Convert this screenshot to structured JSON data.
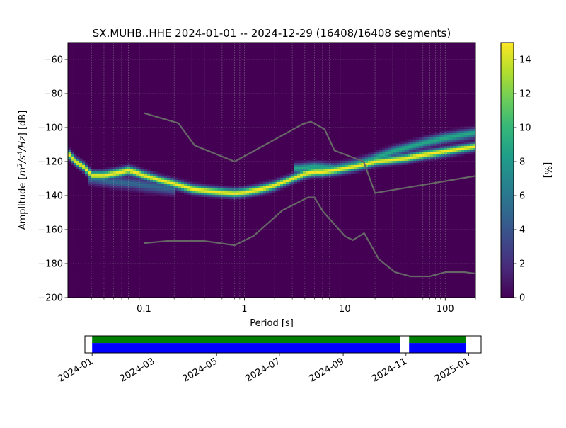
{
  "chart_data": [
    {
      "type": "heatmap",
      "title": "SX.MUHB..HHE   2024-01-01 -- 2024-12-29  (16408/16408 segments)",
      "xlabel": "Period [s]",
      "ylabel_main": "Amplitude [",
      "ylabel_suffix": "] [dB]",
      "ylabel_units_text": "m2/s4/Hz",
      "x_scale": "log",
      "xlim": [
        0.0175,
        200
      ],
      "ylim": [
        -200,
        -50
      ],
      "x_ticks": [
        {
          "value": 0.1,
          "label": "0.1"
        },
        {
          "value": 1,
          "label": "1"
        },
        {
          "value": 10,
          "label": "10"
        },
        {
          "value": 100,
          "label": "100"
        }
      ],
      "y_ticks": [
        {
          "value": -60,
          "label": "−60"
        },
        {
          "value": -80,
          "label": "−80"
        },
        {
          "value": -100,
          "label": "−100"
        },
        {
          "value": -120,
          "label": "−120"
        },
        {
          "value": -140,
          "label": "−140"
        },
        {
          "value": -160,
          "label": "−160"
        },
        {
          "value": -180,
          "label": "−180"
        },
        {
          "value": -200,
          "label": "−200"
        }
      ],
      "grid": true,
      "colormap": "viridis",
      "background_color": "#440154",
      "colorbar": {
        "label": "[%]",
        "range": [
          0,
          15
        ],
        "ticks": [
          {
            "value": 0,
            "label": "0"
          },
          {
            "value": 2,
            "label": "2"
          },
          {
            "value": 4,
            "label": "4"
          },
          {
            "value": 6,
            "label": "6"
          },
          {
            "value": 8,
            "label": "8"
          },
          {
            "value": 10,
            "label": "10"
          },
          {
            "value": 12,
            "label": "12"
          },
          {
            "value": 14,
            "label": "14"
          }
        ]
      },
      "ridges": [
        {
          "points": [
            [
              0.0175,
              -115
            ],
            [
              0.02,
              -119
            ],
            [
              0.025,
              -123
            ],
            [
              0.03,
              -128
            ],
            [
              0.04,
              -128
            ],
            [
              0.05,
              -127
            ],
            [
              0.06,
              -126
            ],
            [
              0.07,
              -125
            ],
            [
              0.08,
              -126
            ],
            [
              0.1,
              -128
            ],
            [
              0.15,
              -131
            ],
            [
              0.2,
              -133
            ],
            [
              0.3,
              -136
            ],
            [
              0.4,
              -137
            ],
            [
              0.6,
              -138
            ],
            [
              0.8,
              -138.5
            ],
            [
              1,
              -138
            ],
            [
              1.5,
              -136
            ],
            [
              2,
              -134
            ],
            [
              3,
              -130
            ],
            [
              4,
              -127
            ],
            [
              5,
              -126
            ],
            [
              6,
              -126
            ],
            [
              8,
              -125
            ],
            [
              10,
              -124
            ],
            [
              15,
              -122
            ],
            [
              20,
              -120
            ],
            [
              40,
              -118
            ],
            [
              60,
              -116
            ],
            [
              100,
              -114
            ],
            [
              200,
              -111
            ]
          ],
          "width_db": 2.2,
          "peak": 15
        },
        {
          "points": [
            [
              0.03,
              -130
            ],
            [
              0.05,
              -132
            ],
            [
              0.08,
              -133
            ],
            [
              0.1,
              -134
            ],
            [
              0.2,
              -136
            ]
          ],
          "width_db": 3,
          "peak": 5
        },
        {
          "points": [
            [
              3.5,
              -124
            ],
            [
              5,
              -123
            ],
            [
              8,
              -124
            ],
            [
              12,
              -122
            ],
            [
              20,
              -118
            ],
            [
              30,
              -114
            ],
            [
              60,
              -109
            ],
            [
              100,
              -106
            ],
            [
              200,
              -103
            ]
          ],
          "width_db": 2.5,
          "peak": 9
        }
      ],
      "noise_models": [
        {
          "name": "high-noise-model",
          "points": [
            [
              0.1,
              -91.5
            ],
            [
              0.22,
              -97.4
            ],
            [
              0.32,
              -110.5
            ],
            [
              0.8,
              -120
            ],
            [
              3.8,
              -98
            ],
            [
              4.6,
              -96.5
            ],
            [
              6.3,
              -101
            ],
            [
              7.9,
              -113.5
            ],
            [
              15.4,
              -120
            ],
            [
              20,
              -138.5
            ],
            [
              354.8,
              -126
            ]
          ]
        },
        {
          "name": "low-noise-model",
          "points": [
            [
              0.1,
              -168
            ],
            [
              0.17,
              -166.7
            ],
            [
              0.4,
              -166.7
            ],
            [
              0.8,
              -169.2
            ],
            [
              1.24,
              -163.7
            ],
            [
              2.4,
              -148.6
            ],
            [
              4.3,
              -141.1
            ],
            [
              5,
              -141.1
            ],
            [
              6,
              -149
            ],
            [
              10,
              -163.8
            ],
            [
              12,
              -166.2
            ],
            [
              15.6,
              -162.1
            ],
            [
              21.9,
              -177.5
            ],
            [
              31.6,
              -185
            ],
            [
              45,
              -187.5
            ],
            [
              70,
              -187.5
            ],
            [
              101,
              -185
            ],
            [
              154,
              -185
            ],
            [
              328,
              -187.5
            ]
          ]
        }
      ],
      "noise_model_color": "#666666"
    },
    {
      "type": "timeline",
      "x_ticks": [
        "2024-01",
        "2024-03",
        "2024-05",
        "2024-07",
        "2024-09",
        "2024-11",
        "2025-01"
      ],
      "date_range": [
        "2023-12-25",
        "2025-01-13"
      ],
      "coverage": [
        {
          "start": "2024-01-01",
          "end": "2024-10-26"
        },
        {
          "start": "2024-11-04",
          "end": "2024-12-29"
        }
      ],
      "colors": {
        "data": "#0000ff",
        "processed": "#008000"
      }
    }
  ]
}
